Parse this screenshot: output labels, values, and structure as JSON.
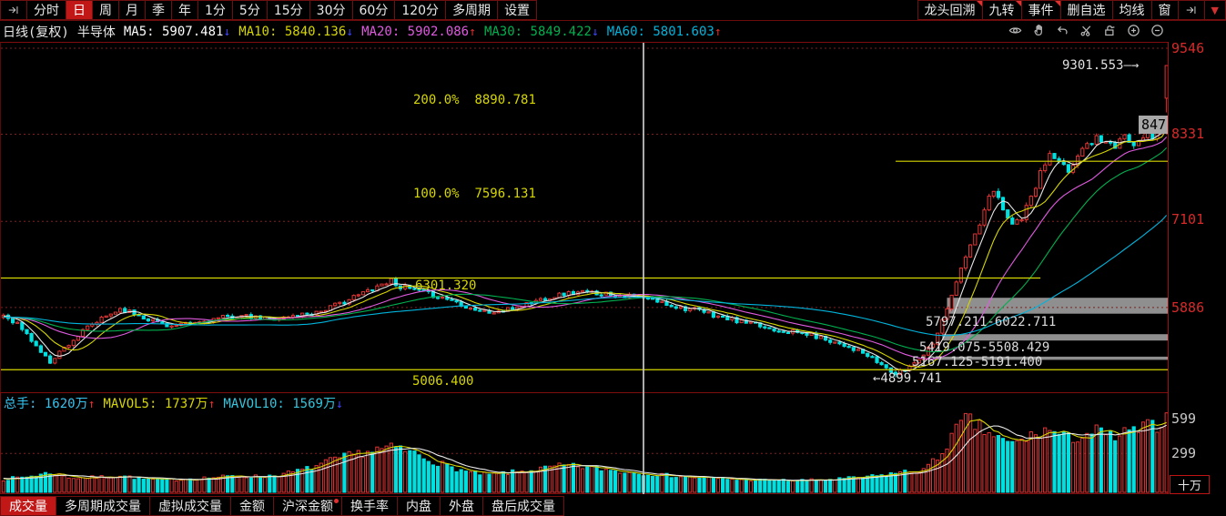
{
  "toolbar_top": {
    "left_items": [
      {
        "type": "icon",
        "icon": "jump-right-icon"
      },
      {
        "label": "分时"
      },
      {
        "label": "日",
        "active": true
      },
      {
        "label": "周"
      },
      {
        "label": "月"
      },
      {
        "label": "季"
      },
      {
        "label": "年"
      },
      {
        "label": "1分"
      },
      {
        "label": "5分"
      },
      {
        "label": "15分"
      },
      {
        "label": "30分"
      },
      {
        "label": "60分"
      },
      {
        "label": "120分"
      },
      {
        "label": "多周期"
      },
      {
        "label": "设置"
      }
    ],
    "right_items": [
      {
        "label": "龙头回溯",
        "corner": true
      },
      {
        "label": "九转",
        "corner": true
      },
      {
        "label": "事件",
        "corner": true
      },
      {
        "label": "删自选"
      },
      {
        "label": "均线"
      },
      {
        "label": "窗"
      },
      {
        "type": "icon",
        "icon": "jump-right-icon"
      },
      {
        "type": "dropdown",
        "label": "▼"
      }
    ]
  },
  "chart_header": {
    "title": "日线(复权)",
    "subtitle": "半导体",
    "ma_items": [
      {
        "label": "MA5:",
        "value": "5907.481",
        "arrow": "↓",
        "dir": "down",
        "color": "#ffffff"
      },
      {
        "label": "MA10:",
        "value": "5840.136",
        "arrow": "↓",
        "dir": "down",
        "color": "#d6d600"
      },
      {
        "label": "MA20:",
        "value": "5902.086",
        "arrow": "↑",
        "dir": "up",
        "color": "#e05ae0"
      },
      {
        "label": "MA30:",
        "value": "5849.422",
        "arrow": "↓",
        "dir": "down",
        "color": "#00b050"
      },
      {
        "label": "MA60:",
        "value": "5801.603",
        "arrow": "↑",
        "dir": "up",
        "color": "#00b4dc"
      }
    ],
    "tools": [
      "eye-icon",
      "hand-pan-icon",
      "undo-icon",
      "scissors-icon",
      "lock-open-icon",
      "zoom-in-icon",
      "zoom-out-icon"
    ]
  },
  "volume_pane": {
    "header_items": [
      {
        "label": "总手:",
        "value": "1620万",
        "arrow": "↑",
        "dir": "up",
        "color": "#35c3f0"
      },
      {
        "label": "MAVOL5:",
        "value": "1737万",
        "arrow": "↑",
        "dir": "up",
        "color": "#d6d600"
      },
      {
        "label": "MAVOL10:",
        "value": "1569万",
        "arrow": "↓",
        "dir": "down",
        "color": "#33c6de"
      }
    ],
    "ticks": [
      "599",
      "299"
    ],
    "unit": "十万"
  },
  "bottom_tabs": [
    {
      "label": "成交量",
      "active": true
    },
    {
      "label": "多周期成交量"
    },
    {
      "label": "虚拟成交量"
    },
    {
      "label": "金额"
    },
    {
      "label": "沪深金额",
      "dot": true
    },
    {
      "label": "换手率"
    },
    {
      "label": "内盘"
    },
    {
      "label": "外盘"
    },
    {
      "label": "盘后成交量"
    }
  ],
  "colors": {
    "up_candle": "#e23535",
    "down_candle": "#00e0e0",
    "grid": "#7c2020",
    "band": "#8f8f8f",
    "yellow_line": "#d6d600",
    "axis_red": "#d62a2a",
    "arrow_up": "#e03030",
    "arrow_down": "#3e46ff"
  },
  "chart_data": {
    "type": "candlestick+volume",
    "period": "日线(复权)",
    "symbol": "半导体",
    "y_ticks": [
      "9546",
      "8331",
      "7101",
      "5886"
    ],
    "price_gridlines": [
      9546,
      8331,
      7101,
      5886
    ],
    "num_candles": 250,
    "preroll_price": 5750,
    "close_anchors": [
      [
        0,
        5780
      ],
      [
        3,
        5660
      ],
      [
        6,
        5420
      ],
      [
        9,
        5180
      ],
      [
        10,
        5120
      ],
      [
        12,
        5260
      ],
      [
        15,
        5430
      ],
      [
        18,
        5600
      ],
      [
        22,
        5760
      ],
      [
        25,
        5870
      ],
      [
        28,
        5800
      ],
      [
        32,
        5700
      ],
      [
        36,
        5620
      ],
      [
        40,
        5650
      ],
      [
        45,
        5720
      ],
      [
        50,
        5770
      ],
      [
        55,
        5730
      ],
      [
        60,
        5740
      ],
      [
        64,
        5790
      ],
      [
        68,
        5840
      ],
      [
        72,
        5940
      ],
      [
        76,
        6060
      ],
      [
        80,
        6190
      ],
      [
        83,
        6270
      ],
      [
        85,
        6180
      ],
      [
        88,
        6130
      ],
      [
        92,
        6060
      ],
      [
        96,
        5990
      ],
      [
        100,
        5880
      ],
      [
        104,
        5810
      ],
      [
        108,
        5850
      ],
      [
        112,
        5940
      ],
      [
        116,
        6020
      ],
      [
        120,
        6080
      ],
      [
        124,
        6100
      ],
      [
        128,
        6090
      ],
      [
        132,
        6060
      ],
      [
        136,
        6030
      ],
      [
        140,
        5970
      ],
      [
        144,
        5900
      ],
      [
        148,
        5850
      ],
      [
        152,
        5780
      ],
      [
        156,
        5710
      ],
      [
        160,
        5650
      ],
      [
        164,
        5590
      ],
      [
        168,
        5550
      ],
      [
        172,
        5510
      ],
      [
        176,
        5440
      ],
      [
        180,
        5360
      ],
      [
        183,
        5270
      ],
      [
        186,
        5160
      ],
      [
        189,
        5030
      ],
      [
        191,
        4940
      ],
      [
        193,
        5010
      ],
      [
        195,
        5110
      ],
      [
        197,
        5230
      ],
      [
        199,
        5400
      ],
      [
        201,
        5700
      ],
      [
        203,
        6080
      ],
      [
        205,
        6420
      ],
      [
        207,
        6760
      ],
      [
        209,
        7060
      ],
      [
        211,
        7420
      ],
      [
        212,
        7540
      ],
      [
        214,
        7300
      ],
      [
        216,
        7060
      ],
      [
        218,
        7160
      ],
      [
        220,
        7420
      ],
      [
        222,
        7780
      ],
      [
        224,
        8040
      ],
      [
        226,
        7920
      ],
      [
        228,
        7800
      ],
      [
        230,
        8040
      ],
      [
        232,
        8180
      ],
      [
        234,
        8290
      ],
      [
        236,
        8230
      ],
      [
        238,
        8140
      ],
      [
        240,
        8300
      ],
      [
        242,
        8210
      ],
      [
        244,
        8330
      ],
      [
        246,
        8290
      ],
      [
        248,
        8460
      ],
      [
        249,
        9301
      ]
    ],
    "volume_anchors": [
      [
        0,
        100
      ],
      [
        5,
        120
      ],
      [
        10,
        150
      ],
      [
        15,
        110
      ],
      [
        20,
        115
      ],
      [
        25,
        130
      ],
      [
        30,
        100
      ],
      [
        35,
        95
      ],
      [
        40,
        105
      ],
      [
        45,
        115
      ],
      [
        50,
        125
      ],
      [
        55,
        120
      ],
      [
        60,
        140
      ],
      [
        65,
        180
      ],
      [
        70,
        240
      ],
      [
        75,
        290
      ],
      [
        80,
        330
      ],
      [
        84,
        340
      ],
      [
        88,
        300
      ],
      [
        92,
        240
      ],
      [
        96,
        190
      ],
      [
        100,
        150
      ],
      [
        104,
        135
      ],
      [
        108,
        150
      ],
      [
        112,
        165
      ],
      [
        116,
        185
      ],
      [
        120,
        205
      ],
      [
        124,
        195
      ],
      [
        128,
        180
      ],
      [
        132,
        160
      ],
      [
        136,
        150
      ],
      [
        140,
        135
      ],
      [
        144,
        125
      ],
      [
        148,
        115
      ],
      [
        152,
        108
      ],
      [
        156,
        100
      ],
      [
        160,
        96
      ],
      [
        164,
        92
      ],
      [
        168,
        90
      ],
      [
        172,
        92
      ],
      [
        176,
        96
      ],
      [
        180,
        105
      ],
      [
        184,
        115
      ],
      [
        188,
        130
      ],
      [
        191,
        150
      ],
      [
        194,
        160
      ],
      [
        197,
        175
      ],
      [
        200,
        260
      ],
      [
        203,
        430
      ],
      [
        206,
        560
      ],
      [
        208,
        520
      ],
      [
        210,
        470
      ],
      [
        212,
        440
      ],
      [
        214,
        390
      ],
      [
        216,
        370
      ],
      [
        218,
        400
      ],
      [
        220,
        430
      ],
      [
        222,
        460
      ],
      [
        224,
        480
      ],
      [
        226,
        440
      ],
      [
        228,
        410
      ],
      [
        230,
        430
      ],
      [
        232,
        450
      ],
      [
        234,
        470
      ],
      [
        236,
        440
      ],
      [
        238,
        420
      ],
      [
        240,
        450
      ],
      [
        242,
        470
      ],
      [
        244,
        490
      ],
      [
        246,
        510
      ],
      [
        248,
        545
      ],
      [
        249,
        575
      ]
    ],
    "last_candle": {
      "open": 8840,
      "close": 9301.553,
      "high": 9301.553,
      "low": 8640
    },
    "low_idx": 191,
    "low_value": 4899.741,
    "high_touch_idx": 83,
    "high_touch_value": 6301.32,
    "ma_lines": [
      {
        "period": 5,
        "color": "#e8e8e8"
      },
      {
        "period": 10,
        "color": "#d6d600"
      },
      {
        "period": 20,
        "color": "#e05ae0"
      },
      {
        "period": 30,
        "color": "#00b050"
      },
      {
        "period": 60,
        "color": "#00b4dc"
      }
    ],
    "horizontal_lines": [
      {
        "price": 6301.32,
        "label": "6301.320",
        "from_idx": 0,
        "to_idx": 222
      },
      {
        "price": 5006.4,
        "label": "5006.400",
        "from_idx": 0,
        "to_idx": null
      },
      {
        "price": 7950,
        "label": null,
        "from_idx": 191,
        "to_idx": null
      }
    ],
    "gap_zones": [
      {
        "low": 5797.211,
        "high": 6022.711,
        "from_idx": 202,
        "label": "5797.211-6022.711"
      },
      {
        "low": 5419.075,
        "high": 5508.429,
        "from_idx": 201,
        "label": "5419.075-5508.429"
      },
      {
        "low": 5167.125,
        "high": 5191.4,
        "from_idx": 199,
        "label": "5167.125-5191.400"
      }
    ],
    "fib_levels": [
      {
        "pct": "200.0%",
        "value": "8890.781"
      },
      {
        "pct": "100.0%",
        "value": "7596.131"
      }
    ],
    "annotations": {
      "peak": {
        "text": "9301.553",
        "arrow": "—→"
      },
      "low_text": "←4899.741",
      "price_badge": "847"
    },
    "volume_gridline": 299,
    "crosshair_idx": 137
  }
}
